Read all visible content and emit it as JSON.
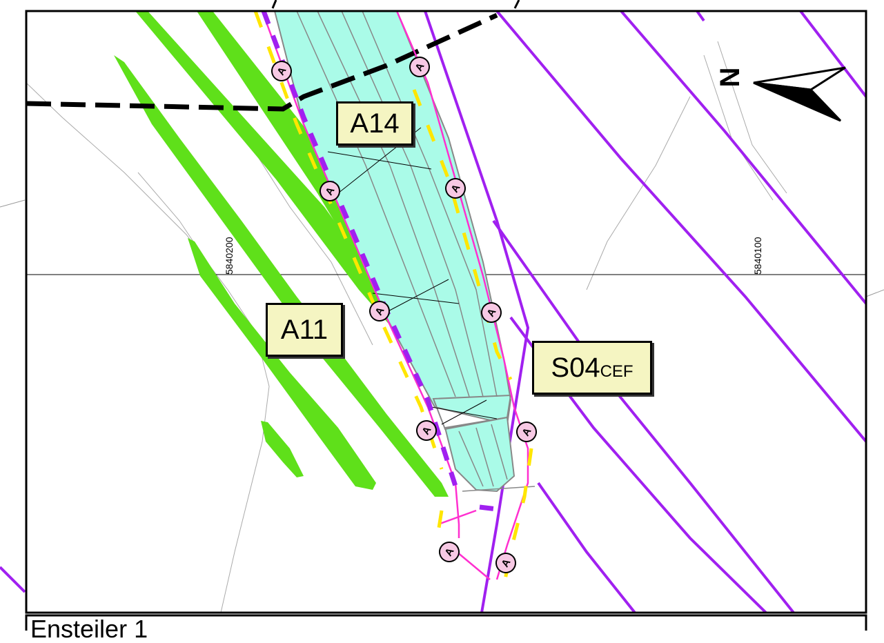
{
  "labels": {
    "a14": "A14",
    "a11": "A11",
    "s04_main": "S04",
    "s04_sub": "CEF"
  },
  "coordinates": {
    "left": "5840200",
    "right": "5840100"
  },
  "marker_letter": "A",
  "north_symbol": "N",
  "scale_text": "Ensteiler 1",
  "colors": {
    "green": "#5fe01a",
    "purple": "#a020f0",
    "magenta": "#ff2fcf",
    "yellow": "#ffe600",
    "cyan": "#aafbe8",
    "boundary": "#000000",
    "label_fill": "#f5f5c2",
    "marker_fill": "#f7c9e4"
  }
}
